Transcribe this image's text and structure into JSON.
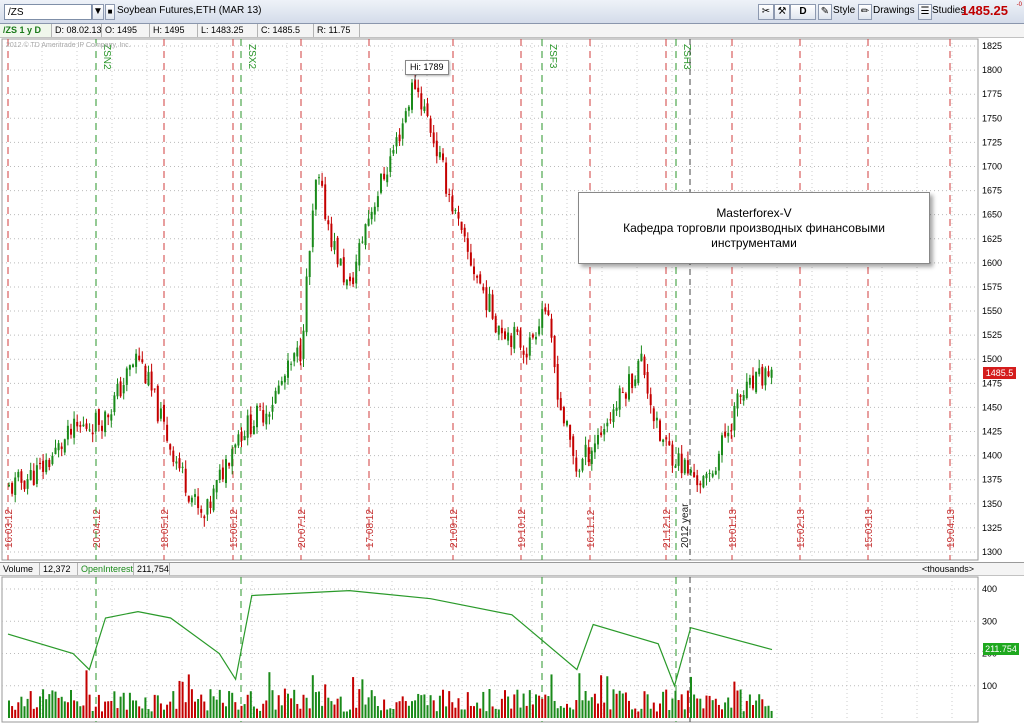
{
  "toolbar": {
    "symbol": "/ZS",
    "title": "Soybean Futures,ETH (MAR 13)",
    "aggregation": "D",
    "style_label": "Style",
    "drawings_label": "Drawings",
    "studies_label": "Studies",
    "last_price": "1485.25",
    "price_change": "-0",
    "colors": {
      "up": "#1a8a1a",
      "down": "#c40000",
      "accent": "#c00000"
    }
  },
  "infobar": {
    "period": "/ZS 1 y D",
    "date": "D: 08.02.13",
    "open": "O: 1495",
    "high": "H: 1495",
    "low": "L: 1483.25",
    "close": "C: 1485.5",
    "range": "R: 11.75"
  },
  "watermark": "2012 © TD Ameritrade IP Company, Inc.",
  "price_tag": "1485.5",
  "hi_label": "Hi: 1789",
  "annotation": {
    "line1": "Masterforex-V",
    "line2": "Кафедра торговли производных финансовыми",
    "line3": "инструментами"
  },
  "volume_bar": {
    "volume_label": "Volume",
    "volume_value": "12,372",
    "oi_label": "OpenInterest",
    "oi_value": "211,754",
    "units": "<thousands>"
  },
  "oi_tag": "211.754",
  "chart_data": [
    {
      "type": "candlestick",
      "ylim": [
        1300,
        1830
      ],
      "y_ticks": [
        1300,
        1325,
        1350,
        1375,
        1400,
        1425,
        1450,
        1475,
        1500,
        1525,
        1550,
        1575,
        1600,
        1625,
        1650,
        1675,
        1700,
        1725,
        1750,
        1775,
        1800,
        1825
      ],
      "expiration_labels": [
        "16.03.12",
        "20.04.12",
        "18.05.12",
        "15.06.12",
        "20.07.12",
        "17.08.12",
        "21.09.12",
        "19.10.12",
        "16.11.12",
        "21.12.12",
        "18.01.13",
        "15.02.13",
        "15.03.13",
        "19.04.13"
      ],
      "contract_labels": [
        "ZSN2",
        "ZSX2",
        "ZSF3",
        "ZSH3"
      ],
      "year_label": "2012 year",
      "price_path": [
        [
          "16.03.12",
          1365
        ],
        [
          "30.03.12",
          1385
        ],
        [
          "13.04.12",
          1425
        ],
        [
          "27.04.12",
          1440
        ],
        [
          "11.05.12",
          1505
        ],
        [
          "25.05.12",
          1410
        ],
        [
          "08.06.12",
          1330
        ],
        [
          "22.06.12",
          1420
        ],
        [
          "06.07.12",
          1450
        ],
        [
          "20.07.12",
          1510
        ],
        [
          "27.07.12",
          1690
        ],
        [
          "03.08.12",
          1620
        ],
        [
          "10.08.12",
          1570
        ],
        [
          "17.08.12",
          1640
        ],
        [
          "31.08.12",
          1730
        ],
        [
          "07.09.12",
          1789
        ],
        [
          "14.09.12",
          1740
        ],
        [
          "28.09.12",
          1620
        ],
        [
          "12.10.12",
          1540
        ],
        [
          "26.10.12",
          1510
        ],
        [
          "02.11.12",
          1560
        ],
        [
          "09.11.12",
          1450
        ],
        [
          "16.11.12",
          1385
        ],
        [
          "30.11.12",
          1440
        ],
        [
          "14.12.12",
          1500
        ],
        [
          "21.12.12",
          1420
        ],
        [
          "04.01.13",
          1380
        ],
        [
          "11.01.13",
          1370
        ],
        [
          "25.01.13",
          1460
        ],
        [
          "08.02.13",
          1490
        ]
      ]
    },
    {
      "type": "bar+line",
      "ylim": [
        0,
        430
      ],
      "y_ticks": [
        100,
        200,
        300,
        400
      ],
      "series": [
        {
          "name": "Volume",
          "values_note": "daily bars"
        },
        {
          "name": "OpenInterest",
          "points": [
            [
              "16.03.12",
              260
            ],
            [
              "13.04.12",
              200
            ],
            [
              "20.04.12",
              150
            ],
            [
              "27.04.12",
              310
            ],
            [
              "11.05.12",
              330
            ],
            [
              "25.05.12",
              310
            ],
            [
              "15.06.12",
              200
            ],
            [
              "22.06.12",
              120
            ],
            [
              "29.06.12",
              380
            ],
            [
              "10.08.12",
              395
            ],
            [
              "14.09.12",
              370
            ],
            [
              "19.10.12",
              320
            ],
            [
              "16.11.12",
              150
            ],
            [
              "23.11.12",
              290
            ],
            [
              "21.12.12",
              230
            ],
            [
              "28.12.12",
              100
            ],
            [
              "04.01.13",
              280
            ],
            [
              "08.02.13",
              212
            ]
          ]
        }
      ]
    }
  ]
}
